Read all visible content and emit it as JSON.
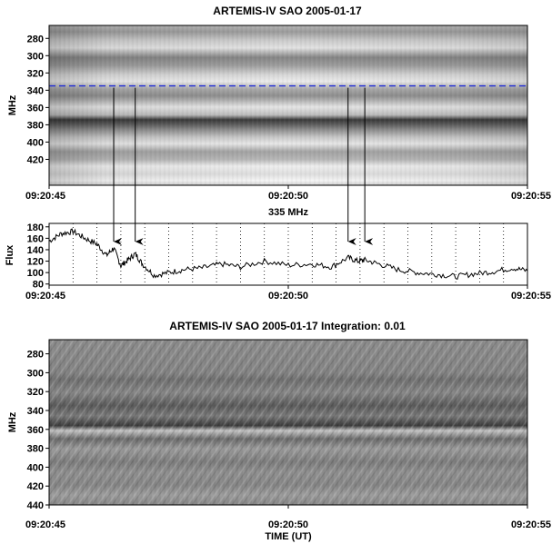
{
  "chart_data": [
    {
      "type": "heatmap",
      "title": "ARTEMIS-IV  SAO 2005-01-17",
      "ylabel": "MHz",
      "ylim": [
        450,
        265
      ],
      "yticks": [
        280,
        300,
        320,
        340,
        360,
        380,
        400,
        420
      ],
      "xticks": [
        "09:20:45",
        "09:20:50",
        "09:20:55"
      ],
      "x_range_s": [
        0,
        10
      ],
      "colormap": "grayscale inverted (dark = high intensity)",
      "marker_line": {
        "freq_mhz": 335,
        "style": "dashed",
        "color": "#1f2bd6"
      },
      "arrow_times_s": [
        1.35,
        1.8,
        6.25,
        6.6
      ],
      "dark_bands_mhz": [
        272,
        300,
        327,
        357,
        368,
        398
      ],
      "light_bands_mhz": [
        288,
        314,
        345,
        388,
        410,
        432
      ]
    },
    {
      "type": "line",
      "annotation": "335 MHz",
      "ylabel": "Flux",
      "ylim": [
        78,
        186
      ],
      "yticks": [
        80,
        100,
        120,
        140,
        160,
        180
      ],
      "xticks": [
        "09:20:45",
        "09:20:50",
        "09:20:55"
      ],
      "x_range_s": [
        0,
        10
      ],
      "grid": "vertical dotted every 0.5 s",
      "x": [
        0,
        0.25,
        0.5,
        0.75,
        1.0,
        1.2,
        1.35,
        1.5,
        1.65,
        1.8,
        1.95,
        2.2,
        2.5,
        2.8,
        3.2,
        3.6,
        4.0,
        4.5,
        5.0,
        5.5,
        5.9,
        6.25,
        6.45,
        6.6,
        6.9,
        7.3,
        7.7,
        8.1,
        8.5,
        8.9,
        9.3,
        9.7,
        10.0
      ],
      "values": [
        155,
        168,
        172,
        160,
        150,
        130,
        143,
        112,
        122,
        133,
        115,
        95,
        100,
        105,
        108,
        115,
        110,
        120,
        113,
        115,
        110,
        126,
        120,
        122,
        115,
        105,
        100,
        97,
        93,
        98,
        102,
        108,
        103
      ]
    },
    {
      "type": "heatmap",
      "title": "ARTEMIS-IV  SAO 2005-01-17   Integration: 0.01",
      "ylabel": "MHz",
      "xlabel": "TIME (UT)",
      "ylim": [
        440,
        265
      ],
      "yticks": [
        280,
        300,
        320,
        340,
        360,
        380,
        400,
        420,
        440
      ],
      "xticks": [
        "09:20:45",
        "09:20:50",
        "09:20:55"
      ],
      "x_range_s": [
        0,
        10
      ],
      "colormap": "grayscale, mid-gray background",
      "dark_bands_mhz": [
        305,
        335,
        345,
        360
      ],
      "light_bands_mhz": [
        365,
        378,
        430
      ]
    }
  ]
}
